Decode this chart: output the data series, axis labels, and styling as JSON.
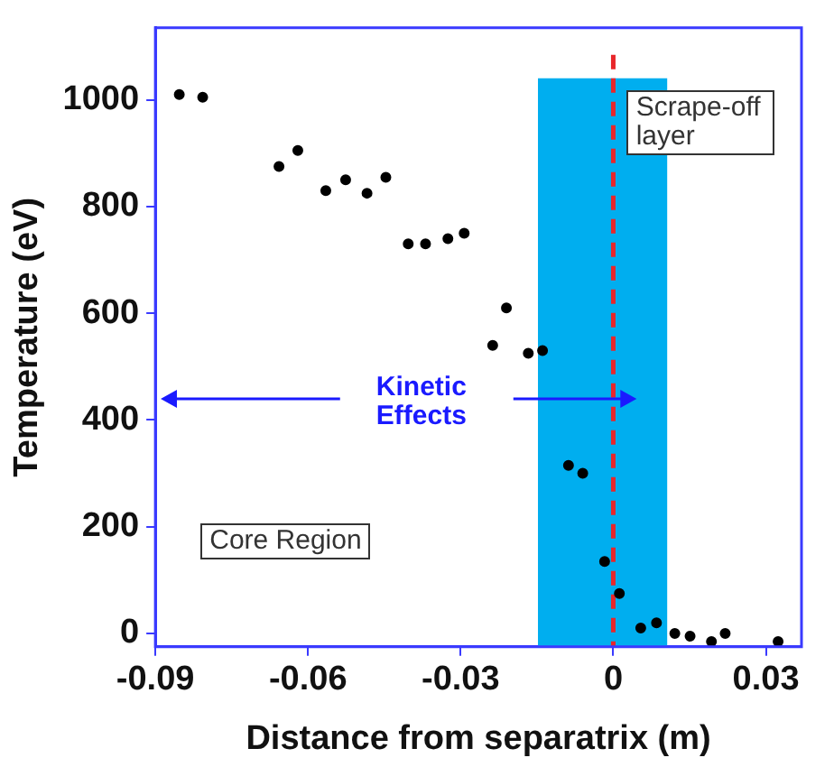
{
  "chart_data": {
    "type": "scatter",
    "xlabel": "Distance from separatrix (m)",
    "ylabel": "Temperature (eV)",
    "x": [
      -0.0853,
      -0.0807,
      -0.0657,
      -0.062,
      -0.0565,
      -0.0526,
      -0.0484,
      -0.0447,
      -0.0403,
      -0.0369,
      -0.0325,
      -0.0293,
      -0.0237,
      -0.021,
      -0.0167,
      -0.0139,
      -0.0088,
      -0.006,
      -0.0017,
      0.0012,
      0.0054,
      0.0085,
      0.0121,
      0.0151,
      0.0193,
      0.022,
      0.0324
    ],
    "values": [
      1010,
      1005,
      875,
      905,
      830,
      850,
      825,
      855,
      730,
      730,
      740,
      750,
      540,
      610,
      525,
      530,
      315,
      300,
      135,
      75,
      10,
      20,
      0,
      -5,
      -15,
      0,
      -15
    ],
    "color": "#000000",
    "marker": "circle",
    "xlim": [
      -0.09,
      0.037
    ],
    "xticks": [
      -0.09,
      -0.06,
      -0.03,
      0,
      0.03
    ],
    "ylim": [
      -25,
      1135
    ],
    "yticks": [
      0,
      200,
      400,
      600,
      800,
      1000
    ],
    "grid": false,
    "legend": false,
    "ref_lines": [
      {
        "axis": "x",
        "value": 0,
        "color": "#e8262a",
        "line_style": "dashed"
      }
    ],
    "bands": [
      {
        "axis": "x",
        "from": -0.0148,
        "to": 0.0106,
        "color": "#00aeef"
      }
    ],
    "annotations": [
      "Scrape-off layer",
      "Kinetic Effects",
      "Core Region"
    ]
  }
}
